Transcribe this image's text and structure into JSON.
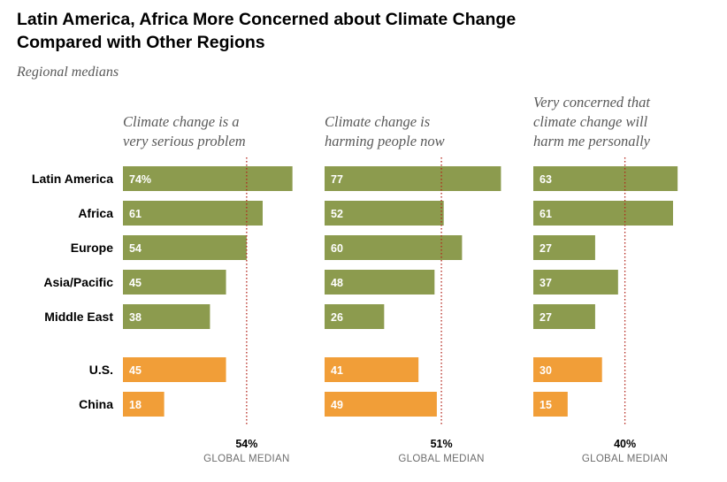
{
  "title": "Latin America, Africa More Concerned about Climate Change Compared with Other Regions",
  "title_lines": [
    "Latin America, Africa More Concerned about Climate Change",
    "Compared with Other Regions"
  ],
  "subtitle": "Regional medians",
  "colors": {
    "region_bar": "#8c9b4e",
    "country_bar": "#f19e38",
    "median_line": "#b3241b"
  },
  "chart_data": {
    "type": "bar",
    "orientation": "horizontal",
    "categories": [
      "Latin America",
      "Africa",
      "Europe",
      "Asia/Pacific",
      "Middle East",
      "U.S.",
      "China"
    ],
    "category_groups": [
      "region",
      "region",
      "region",
      "region",
      "region",
      "country",
      "country"
    ],
    "median_caption": "GLOBAL MEDIAN",
    "panels": [
      {
        "title_lines": [
          "Climate change is a",
          "very serious problem"
        ],
        "values": [
          74,
          61,
          54,
          45,
          38,
          45,
          18
        ],
        "value_labels": [
          "74%",
          "61",
          "54",
          "45",
          "38",
          "45",
          "18"
        ],
        "global_median": 54,
        "global_median_label": "54%"
      },
      {
        "title_lines": [
          "Climate change is",
          "harming people now"
        ],
        "values": [
          77,
          52,
          60,
          48,
          26,
          41,
          49
        ],
        "value_labels": [
          "77",
          "52",
          "60",
          "48",
          "26",
          "41",
          "49"
        ],
        "global_median": 51,
        "global_median_label": "51%"
      },
      {
        "title_lines": [
          "Very concerned that",
          "climate change will",
          "harm me personally"
        ],
        "values": [
          63,
          61,
          27,
          37,
          27,
          30,
          15
        ],
        "value_labels": [
          "63",
          "61",
          "27",
          "37",
          "27",
          "30",
          "15"
        ],
        "global_median": 40,
        "global_median_label": "40%"
      }
    ]
  }
}
